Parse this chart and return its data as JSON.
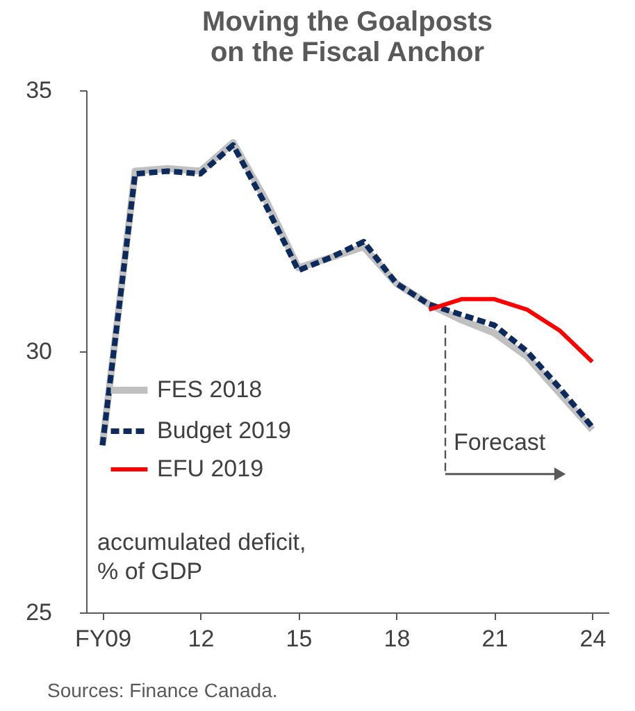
{
  "chart_data": {
    "type": "line",
    "title": "Moving the Goalposts\non the Fiscal Anchor",
    "ylabel": "accumulated deficit,\n% of GDP",
    "x": [
      2009,
      2010,
      2011,
      2012,
      2013,
      2014,
      2015,
      2016,
      2017,
      2018,
      2019,
      2020,
      2021,
      2022,
      2023,
      2024
    ],
    "series": [
      {
        "name": "FES 2018",
        "color": "#c0c0c0",
        "line_style": "solid",
        "values": [
          28.2,
          33.45,
          33.5,
          33.45,
          34.0,
          32.9,
          31.6,
          31.8,
          32.0,
          31.3,
          30.9,
          30.6,
          30.35,
          29.9,
          29.2,
          28.5
        ]
      },
      {
        "name": "Budget 2019",
        "color": "#0d2a5c",
        "line_style": "dashed",
        "values": [
          28.2,
          33.4,
          33.45,
          33.4,
          33.95,
          32.8,
          31.55,
          31.8,
          32.1,
          31.3,
          30.9,
          30.7,
          30.5,
          30.0,
          29.3,
          28.55
        ]
      },
      {
        "name": "EFU 2019",
        "color": "#ff0000",
        "line_style": "solid",
        "values": [
          null,
          null,
          null,
          null,
          null,
          null,
          null,
          null,
          null,
          null,
          30.8,
          31.0,
          31.0,
          30.8,
          30.4,
          29.8
        ]
      }
    ],
    "xlim": [
      2008.5,
      2024.5
    ],
    "xticks": [
      {
        "value": 2009,
        "label": "FY09"
      },
      {
        "value": 2012,
        "label": "12"
      },
      {
        "value": 2015,
        "label": "15"
      },
      {
        "value": 2018,
        "label": "18"
      },
      {
        "value": 2021,
        "label": "21"
      },
      {
        "value": 2024,
        "label": "24"
      }
    ],
    "ylim": [
      25,
      35
    ],
    "yticks": [
      25,
      30,
      35
    ],
    "ref_lines": [
      {
        "axis": "x",
        "value": 2019.5,
        "label": "Forecast",
        "color": "#555555",
        "line_style": "dashed"
      }
    ],
    "annotations": [
      "Sources: Finance Canada."
    ],
    "grid": false,
    "legend": "left"
  }
}
